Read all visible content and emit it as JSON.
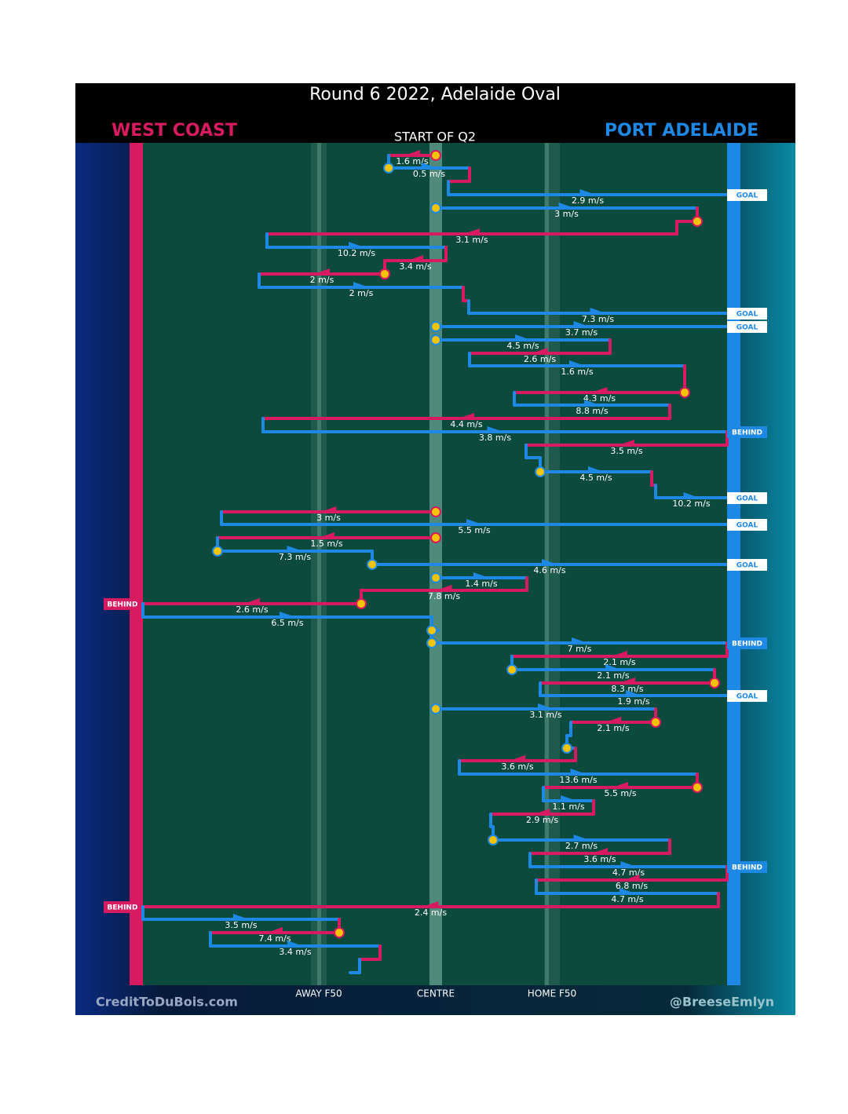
{
  "title": "Round 6 2022, Adelaide Oval",
  "teams": [
    {
      "name": "WEST COAST",
      "color": "#d81b60"
    },
    {
      "name": "PORT ADELAIDE",
      "color": "#1e88e5"
    }
  ],
  "start_label": "START OF Q2",
  "field_labels": [
    "AWAY F50",
    "CENTRE",
    "HOME F50"
  ],
  "credits": [
    "CreditToDuBois.com",
    "@BreeseEmlyn"
  ],
  "rows": [
    {
      "label": "1.6 m/s"
    },
    {
      "label": "0.5 m/s"
    },
    {
      "label": "2.9 m/s",
      "outcome": "GOAL"
    },
    {
      "label": "3 m/s"
    },
    {
      "label": "3.1 m/s"
    },
    {
      "label": "10.2 m/s"
    },
    {
      "label": "3.4 m/s"
    },
    {
      "label": "2 m/s"
    },
    {
      "label": "2 m/s"
    },
    {
      "label": "7.3 m/s",
      "outcome": "GOAL"
    },
    {
      "label": "3.7 m/s",
      "outcome": "GOAL"
    },
    {
      "label": "4.5 m/s"
    },
    {
      "label": "2.6 m/s"
    },
    {
      "label": "1.6 m/s"
    },
    {
      "label": "4.3 m/s"
    },
    {
      "label": "8.8 m/s"
    },
    {
      "label": "4.4 m/s"
    },
    {
      "label": "3.8 m/s",
      "outcome": "BEHIND"
    },
    {
      "label": "3.5 m/s"
    },
    {
      "label": "4.5 m/s"
    },
    {
      "label": "10.2 m/s",
      "outcome": "GOAL"
    },
    {
      "label": "3 m/s"
    },
    {
      "label": "5.5 m/s",
      "outcome": "GOAL"
    },
    {
      "label": "1.5 m/s"
    },
    {
      "label": "7.3 m/s"
    },
    {
      "label": "4.6 m/s",
      "outcome": "GOAL"
    },
    {
      "label": "1.4 m/s"
    },
    {
      "label": "7.8 m/s"
    },
    {
      "label": "2.6 m/s",
      "outcome": "BEHIND"
    },
    {
      "label": "6.5 m/s"
    },
    {
      "label": "7 m/s",
      "outcome": "BEHIND"
    },
    {
      "label": "2.1 m/s"
    },
    {
      "label": "2.1 m/s"
    },
    {
      "label": "8.3 m/s"
    },
    {
      "label": "1.9 m/s",
      "outcome": "GOAL"
    },
    {
      "label": "3.1 m/s"
    },
    {
      "label": "2.1 m/s"
    },
    {
      "label": "3.6 m/s"
    },
    {
      "label": "13.6 m/s"
    },
    {
      "label": "5.5 m/s"
    },
    {
      "label": "1.1 m/s"
    },
    {
      "label": "2.9 m/s"
    },
    {
      "label": "2.7 m/s"
    },
    {
      "label": "3.6 m/s"
    },
    {
      "label": "4.7 m/s",
      "outcome": "BEHIND"
    },
    {
      "label": "6.8 m/s"
    },
    {
      "label": "4.7 m/s"
    },
    {
      "label": "2.4 m/s",
      "outcome": "BEHIND"
    },
    {
      "label": "3.5 m/s"
    },
    {
      "label": "7.4 m/s"
    },
    {
      "label": "3.4 m/s"
    }
  ]
}
